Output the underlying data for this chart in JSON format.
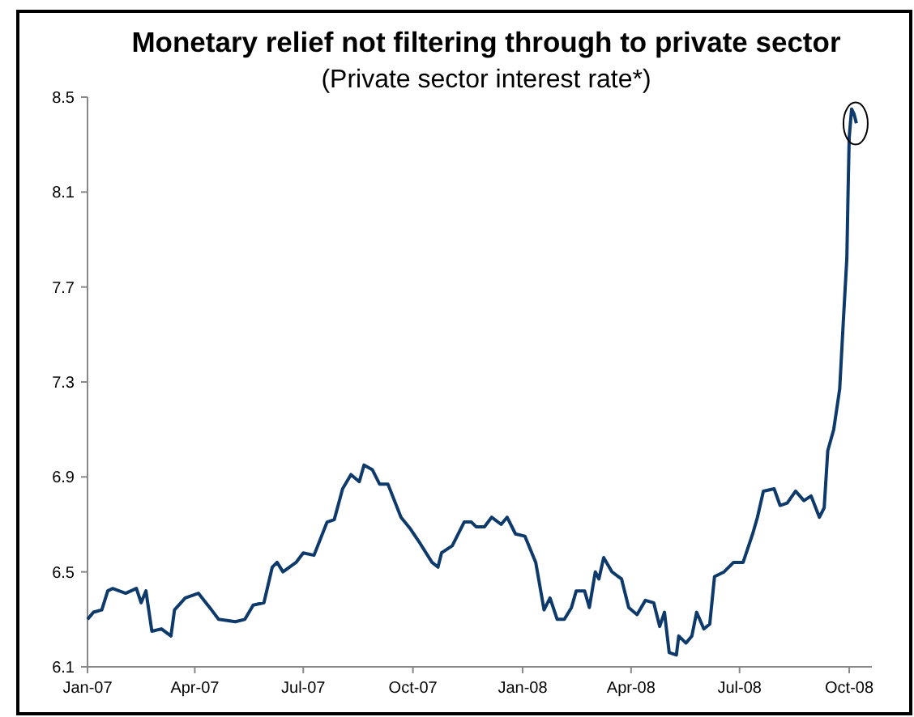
{
  "chart_data": {
    "type": "line",
    "title": "Monetary relief not filtering through to private sector",
    "subtitle": "(Private sector interest rate*)",
    "x": [
      "2007-01-01",
      "2007-01-06",
      "2007-01-13",
      "2007-01-18",
      "2007-01-22",
      "2007-02-02",
      "2007-02-11",
      "2007-02-15",
      "2007-02-19",
      "2007-02-24",
      "2007-03-04",
      "2007-03-12",
      "2007-03-15",
      "2007-03-24",
      "2007-04-04",
      "2007-04-15",
      "2007-04-21",
      "2007-05-05",
      "2007-05-13",
      "2007-05-20",
      "2007-05-29",
      "2007-06-05",
      "2007-06-09",
      "2007-06-14",
      "2007-06-25",
      "2007-07-01",
      "2007-07-10",
      "2007-07-21",
      "2007-07-27",
      "2007-08-03",
      "2007-08-10",
      "2007-08-17",
      "2007-08-21",
      "2007-08-28",
      "2007-09-03",
      "2007-09-10",
      "2007-09-21",
      "2007-09-29",
      "2007-10-07",
      "2007-10-17",
      "2007-10-22",
      "2007-10-25",
      "2007-11-03",
      "2007-11-13",
      "2007-11-19",
      "2007-11-23",
      "2007-11-30",
      "2007-12-06",
      "2007-12-14",
      "2007-12-19",
      "2007-12-26",
      "2008-01-03",
      "2008-01-12",
      "2008-01-19",
      "2008-01-24",
      "2008-01-30",
      "2008-02-05",
      "2008-02-11",
      "2008-02-15",
      "2008-02-22",
      "2008-02-26",
      "2008-03-02",
      "2008-03-05",
      "2008-03-09",
      "2008-03-16",
      "2008-03-24",
      "2008-03-30",
      "2008-04-06",
      "2008-04-13",
      "2008-04-20",
      "2008-04-25",
      "2008-04-29",
      "2008-05-03",
      "2008-05-09",
      "2008-05-11",
      "2008-05-17",
      "2008-05-22",
      "2008-05-26",
      "2008-06-01",
      "2008-06-06",
      "2008-06-10",
      "2008-06-18",
      "2008-06-26",
      "2008-07-04",
      "2008-07-12",
      "2008-07-16",
      "2008-07-21",
      "2008-07-30",
      "2008-08-04",
      "2008-08-10",
      "2008-08-17",
      "2008-08-24",
      "2008-08-30",
      "2008-09-06",
      "2008-09-10",
      "2008-09-13",
      "2008-09-18",
      "2008-09-23",
      "2008-09-26",
      "2008-09-29",
      "2008-09-30",
      "2008-10-01",
      "2008-10-03",
      "2008-10-05",
      "2008-10-07"
    ],
    "series": [
      {
        "color": "#0d3a6b",
        "values": [
          6.3,
          6.33,
          6.34,
          6.42,
          6.43,
          6.41,
          6.43,
          6.37,
          6.42,
          6.25,
          6.26,
          6.23,
          6.34,
          6.39,
          6.41,
          6.34,
          6.3,
          6.29,
          6.3,
          6.36,
          6.37,
          6.52,
          6.54,
          6.5,
          6.54,
          6.58,
          6.57,
          6.71,
          6.72,
          6.85,
          6.91,
          6.88,
          6.95,
          6.93,
          6.87,
          6.87,
          6.73,
          6.68,
          6.62,
          6.54,
          6.52,
          6.58,
          6.61,
          6.71,
          6.71,
          6.69,
          6.69,
          6.73,
          6.7,
          6.73,
          6.66,
          6.65,
          6.54,
          6.34,
          6.39,
          6.3,
          6.3,
          6.35,
          6.42,
          6.42,
          6.35,
          6.5,
          6.47,
          6.56,
          6.5,
          6.47,
          6.35,
          6.32,
          6.38,
          6.37,
          6.27,
          6.33,
          6.16,
          6.15,
          6.23,
          6.2,
          6.23,
          6.33,
          6.26,
          6.28,
          6.48,
          6.5,
          6.54,
          6.54,
          6.66,
          6.73,
          6.84,
          6.85,
          6.78,
          6.79,
          6.84,
          6.8,
          6.82,
          6.73,
          6.77,
          7.01,
          7.1,
          7.27,
          7.55,
          7.82,
          8.09,
          8.33,
          8.45,
          8.43,
          8.39
        ]
      }
    ],
    "xlim": [
      "2007-01-01",
      "2008-10-20"
    ],
    "xticks": [
      {
        "value": "2007-01-01",
        "label": "Jan-07"
      },
      {
        "value": "2007-04-01",
        "label": "Apr-07"
      },
      {
        "value": "2007-07-01",
        "label": "Jul-07"
      },
      {
        "value": "2007-10-01",
        "label": "Oct-07"
      },
      {
        "value": "2008-01-01",
        "label": "Jan-08"
      },
      {
        "value": "2008-04-01",
        "label": "Apr-08"
      },
      {
        "value": "2008-07-01",
        "label": "Jul-08"
      },
      {
        "value": "2008-10-01",
        "label": "Oct-08"
      }
    ],
    "ylim": [
      6.1,
      8.5
    ],
    "yticks": [
      {
        "value": 6.1,
        "label": "6.1"
      },
      {
        "value": 6.5,
        "label": "6.5"
      },
      {
        "value": 6.9,
        "label": "6.9"
      },
      {
        "value": 7.3,
        "label": "7.3"
      },
      {
        "value": 7.7,
        "label": "7.7"
      },
      {
        "value": 8.1,
        "label": "8.1"
      },
      {
        "value": 8.5,
        "label": "8.5"
      }
    ],
    "grid": false,
    "marker": "none",
    "line_style": "solid"
  }
}
